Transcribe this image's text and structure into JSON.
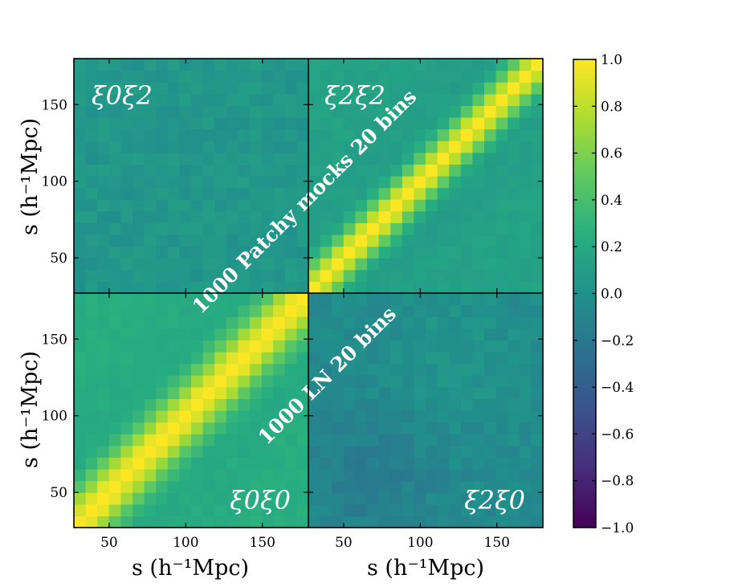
{
  "chart_data": {
    "type": "heatmap",
    "matrix_size": 20,
    "bin_range": [
      27,
      180
    ],
    "panels": [
      {
        "id": "top-left",
        "label": "ξ0ξ2",
        "kind": "cross",
        "base": 0.05
      },
      {
        "id": "top-right",
        "label": "ξ2ξ2",
        "kind": "auto",
        "base": 0.15
      },
      {
        "id": "bottom-left",
        "label": "ξ0ξ0",
        "kind": "auto",
        "base": 0.25
      },
      {
        "id": "bottom-right",
        "label": "ξ2ξ0",
        "kind": "cross",
        "base": -0.05
      }
    ],
    "x_ticks": [
      50,
      100,
      150
    ],
    "y_ticks": [
      50,
      100,
      150
    ],
    "xlabel": "s (h⁻¹Mpc)",
    "ylabel": "s (h⁻¹Mpc)",
    "colorbar": {
      "range": [
        -1.0,
        1.0
      ],
      "ticks": [
        "1.0",
        "0.8",
        "0.6",
        "0.4",
        "0.2",
        "0.0",
        "−0.2",
        "−0.4",
        "−0.6",
        "−0.8",
        "−1.0"
      ],
      "colormap": "viridis"
    },
    "annotations": [
      "1000 Patchy mocks 20 bins",
      "1000 LN 20 bins"
    ]
  }
}
